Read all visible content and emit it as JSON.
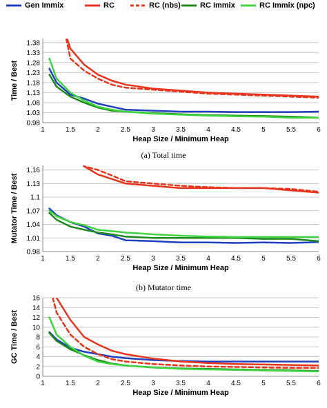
{
  "legend": [
    {
      "name": "Gen Immix",
      "color": "#1f3fbf",
      "dash": false
    },
    {
      "name": "RC",
      "color": "#e8341c",
      "dash": false
    },
    {
      "name": "RC (nbs)",
      "color": "#e8341c",
      "dash": true
    },
    {
      "name": "RC Immix",
      "color": "#1e8a1e",
      "dash": false
    },
    {
      "name": "RC Immix (npc)",
      "color": "#3fd43f",
      "dash": false
    }
  ],
  "chart_data": [
    {
      "type": "line",
      "caption": "(a) Total time",
      "ylabel": "Time / Best",
      "xlabel": "Heap Size / Minimum Heap",
      "xlim": [
        1,
        6
      ],
      "ylim": [
        0.98,
        1.4
      ],
      "xticks": [
        "1",
        "1.5",
        "2",
        "2.5",
        "3",
        "3.5",
        "4",
        "4.5",
        "5",
        "5.5",
        "6"
      ],
      "yticks": [
        "0.98",
        "1.03",
        "1.08",
        "1.13",
        "1.18",
        "1.23",
        "1.28",
        "1.33",
        "1.38"
      ],
      "x": [
        1.12,
        1.25,
        1.5,
        1.75,
        2,
        2.25,
        2.5,
        3,
        3.5,
        4,
        4.5,
        5,
        5.5,
        6
      ],
      "series": [
        {
          "name": "Gen Immix",
          "values": [
            1.25,
            1.18,
            1.12,
            1.1,
            1.075,
            1.06,
            1.045,
            1.04,
            1.035,
            1.035,
            1.033,
            1.033,
            1.033,
            1.035
          ]
        },
        {
          "name": "RC",
          "values": [
            null,
            null,
            1.35,
            1.27,
            1.22,
            1.19,
            1.17,
            1.15,
            1.14,
            1.13,
            1.125,
            1.12,
            1.115,
            1.11
          ]
        },
        {
          "name": "RC (nbs)",
          "values": [
            null,
            null,
            1.3,
            1.24,
            1.2,
            1.17,
            1.155,
            1.145,
            1.135,
            1.125,
            1.12,
            1.115,
            1.11,
            1.105
          ]
        },
        {
          "name": "RC Immix",
          "values": [
            1.22,
            1.16,
            1.11,
            1.08,
            1.055,
            1.04,
            1.035,
            1.028,
            1.022,
            1.018,
            1.015,
            1.013,
            1.01,
            1.005
          ]
        },
        {
          "name": "RC Immix (npc)",
          "values": [
            1.3,
            1.2,
            1.13,
            1.09,
            1.06,
            1.045,
            1.035,
            1.025,
            1.02,
            1.015,
            1.012,
            1.01,
            1.005,
            1.005
          ]
        }
      ]
    },
    {
      "type": "line",
      "caption": "(b) Mutator time",
      "ylabel": "Mutator Time / Best",
      "xlabel": "Heap Size / Minimum Heap",
      "xlim": [
        1,
        6
      ],
      "ylim": [
        0.98,
        1.17
      ],
      "xticks": [
        "1",
        "1.5",
        "2",
        "2.5",
        "3",
        "3.5",
        "4",
        "4.5",
        "5",
        "5.5",
        "6"
      ],
      "yticks": [
        "0.98",
        "1.01",
        "1.04",
        "1.07",
        "1.1",
        "1.13",
        "1.16"
      ],
      "x": [
        1.12,
        1.25,
        1.5,
        1.75,
        2,
        2.25,
        2.5,
        3,
        3.5,
        4,
        4.5,
        5,
        5.5,
        6
      ],
      "series": [
        {
          "name": "Gen Immix",
          "values": [
            1.075,
            1.06,
            1.045,
            1.035,
            1.02,
            1.015,
            1.005,
            1.003,
            1.0,
            1.0,
            0.999,
            1.0,
            0.999,
            1.001
          ]
        },
        {
          "name": "RC",
          "values": [
            null,
            null,
            null,
            1.168,
            1.15,
            1.14,
            1.13,
            1.125,
            1.12,
            1.12,
            1.12,
            1.12,
            1.115,
            1.11
          ]
        },
        {
          "name": "RC (nbs)",
          "values": [
            null,
            null,
            null,
            1.168,
            1.16,
            1.148,
            1.135,
            1.13,
            1.125,
            1.122,
            1.12,
            1.12,
            1.118,
            1.112
          ]
        },
        {
          "name": "RC Immix",
          "values": [
            1.065,
            1.05,
            1.035,
            1.028,
            1.022,
            1.018,
            1.013,
            1.01,
            1.01,
            1.01,
            1.01,
            1.008,
            1.008,
            1.003
          ]
        },
        {
          "name": "RC Immix (npc)",
          "values": [
            1.07,
            1.058,
            1.045,
            1.038,
            1.028,
            1.025,
            1.022,
            1.018,
            1.015,
            1.013,
            1.012,
            1.012,
            1.012,
            1.012
          ]
        }
      ]
    },
    {
      "type": "line",
      "caption": "",
      "ylabel": "GC Time / Best",
      "xlabel": "Heap Size / Minimum Heap",
      "xlim": [
        1,
        6
      ],
      "ylim": [
        0,
        16
      ],
      "xticks": [
        "1",
        "1.5",
        "2",
        "2.5",
        "3",
        "3.5",
        "4",
        "4.5",
        "5",
        "5.5",
        "6"
      ],
      "yticks": [
        "0",
        "2",
        "4",
        "6",
        "8",
        "10",
        "12",
        "14",
        "16"
      ],
      "x": [
        1.12,
        1.25,
        1.5,
        1.75,
        2,
        2.25,
        2.5,
        3,
        3.5,
        4,
        4.5,
        5,
        5.5,
        6
      ],
      "series": [
        {
          "name": "Gen Immix",
          "values": [
            9,
            7.5,
            5.8,
            5,
            4.5,
            4,
            3.7,
            3.3,
            3.1,
            3,
            3,
            3,
            3,
            3
          ]
        },
        {
          "name": "RC",
          "values": [
            null,
            16,
            11.5,
            8,
            6.5,
            5.2,
            4.5,
            3.6,
            3,
            2.7,
            2.5,
            2.4,
            2.3,
            2.2
          ]
        },
        {
          "name": "RC (nbs)",
          "values": [
            null,
            13,
            8.5,
            6,
            4.5,
            3.5,
            3,
            2.5,
            2.2,
            2,
            1.9,
            1.8,
            1.7,
            1.7
          ]
        },
        {
          "name": "RC Immix",
          "values": [
            8.8,
            7.2,
            5.5,
            4.3,
            3.3,
            2.6,
            2.2,
            1.8,
            1.6,
            1.5,
            1.4,
            1.3,
            1.2,
            1.1
          ]
        },
        {
          "name": "RC Immix (npc)",
          "values": [
            12,
            8.5,
            6,
            4.2,
            3,
            2.5,
            2.2,
            1.8,
            1.5,
            1.4,
            1.3,
            1.2,
            1.1,
            1.0
          ]
        }
      ]
    }
  ]
}
